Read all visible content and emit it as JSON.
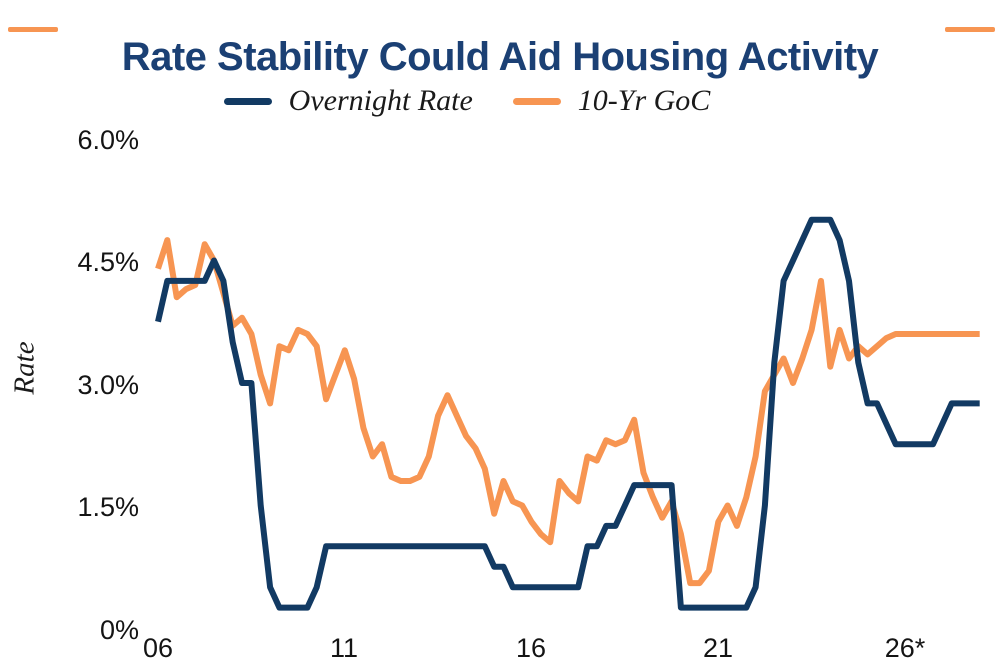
{
  "title": {
    "text": "Rate Stability Could Aid Housing Activity"
  },
  "accent_color": "#F79552",
  "navy_color": "#123A63",
  "legend": [
    {
      "label": "Overnight Rate",
      "color": "#123A63"
    },
    {
      "label": "10-Yr GoC",
      "color": "#F79552"
    }
  ],
  "y_axis": {
    "title": "Rate",
    "tick_labels": [
      "6.0%",
      "4.5%",
      "3.0%",
      "1.5%",
      "0%"
    ],
    "tick_values": [
      6.0,
      4.5,
      3.0,
      1.5,
      0
    ]
  },
  "x_axis": {
    "tick_labels": [
      "06",
      "11",
      "16",
      "21",
      "26*"
    ],
    "tick_values": [
      2006,
      2011,
      2016,
      2021,
      2026
    ]
  },
  "chart_data": {
    "type": "line",
    "title": "Rate Stability Could Aid Housing Activity",
    "xlabel": "",
    "ylabel": "Rate",
    "ylim": [
      0,
      6.0
    ],
    "xlim": [
      2006,
      2028
    ],
    "grid": false,
    "legend_position": "top",
    "x_start": 2006.0,
    "x_step": 0.25,
    "x_unit": "year (quarterly points, * = forecast)",
    "series": [
      {
        "name": "Overnight Rate",
        "color": "#123A63",
        "values": [
          3.75,
          4.25,
          4.25,
          4.25,
          4.25,
          4.25,
          4.5,
          4.25,
          3.5,
          3.0,
          3.0,
          1.5,
          0.5,
          0.25,
          0.25,
          0.25,
          0.25,
          0.5,
          1.0,
          1.0,
          1.0,
          1.0,
          1.0,
          1.0,
          1.0,
          1.0,
          1.0,
          1.0,
          1.0,
          1.0,
          1.0,
          1.0,
          1.0,
          1.0,
          1.0,
          1.0,
          0.75,
          0.75,
          0.5,
          0.5,
          0.5,
          0.5,
          0.5,
          0.5,
          0.5,
          0.5,
          1.0,
          1.0,
          1.25,
          1.25,
          1.5,
          1.75,
          1.75,
          1.75,
          1.75,
          1.75,
          0.25,
          0.25,
          0.25,
          0.25,
          0.25,
          0.25,
          0.25,
          0.25,
          0.5,
          1.5,
          3.25,
          4.25,
          4.5,
          4.75,
          5.0,
          5.0,
          5.0,
          4.75,
          4.25,
          3.25,
          2.75,
          2.75,
          2.5,
          2.25,
          2.25,
          2.25,
          2.25,
          2.25,
          2.5,
          2.75,
          2.75,
          2.75,
          2.75
        ]
      },
      {
        "name": "10-Yr GoC",
        "color": "#F79552",
        "values": [
          4.4,
          4.75,
          4.05,
          4.15,
          4.2,
          4.7,
          4.5,
          4.1,
          3.7,
          3.8,
          3.6,
          3.1,
          2.75,
          3.45,
          3.4,
          3.65,
          3.6,
          3.45,
          2.8,
          3.1,
          3.4,
          3.05,
          2.45,
          2.1,
          2.25,
          1.85,
          1.8,
          1.8,
          1.85,
          2.1,
          2.6,
          2.85,
          2.6,
          2.35,
          2.2,
          1.95,
          1.4,
          1.8,
          1.55,
          1.5,
          1.3,
          1.15,
          1.05,
          1.8,
          1.65,
          1.55,
          2.1,
          2.05,
          2.3,
          2.25,
          2.3,
          2.55,
          1.9,
          1.6,
          1.35,
          1.55,
          1.15,
          0.55,
          0.55,
          0.7,
          1.3,
          1.5,
          1.25,
          1.6,
          2.1,
          2.9,
          3.1,
          3.3,
          3.0,
          3.3,
          3.65,
          4.25,
          3.2,
          3.65,
          3.3,
          3.45,
          3.35,
          3.45,
          3.55,
          3.6,
          3.6,
          3.6,
          3.6,
          3.6,
          3.6,
          3.6,
          3.6,
          3.6,
          3.6
        ]
      }
    ]
  }
}
